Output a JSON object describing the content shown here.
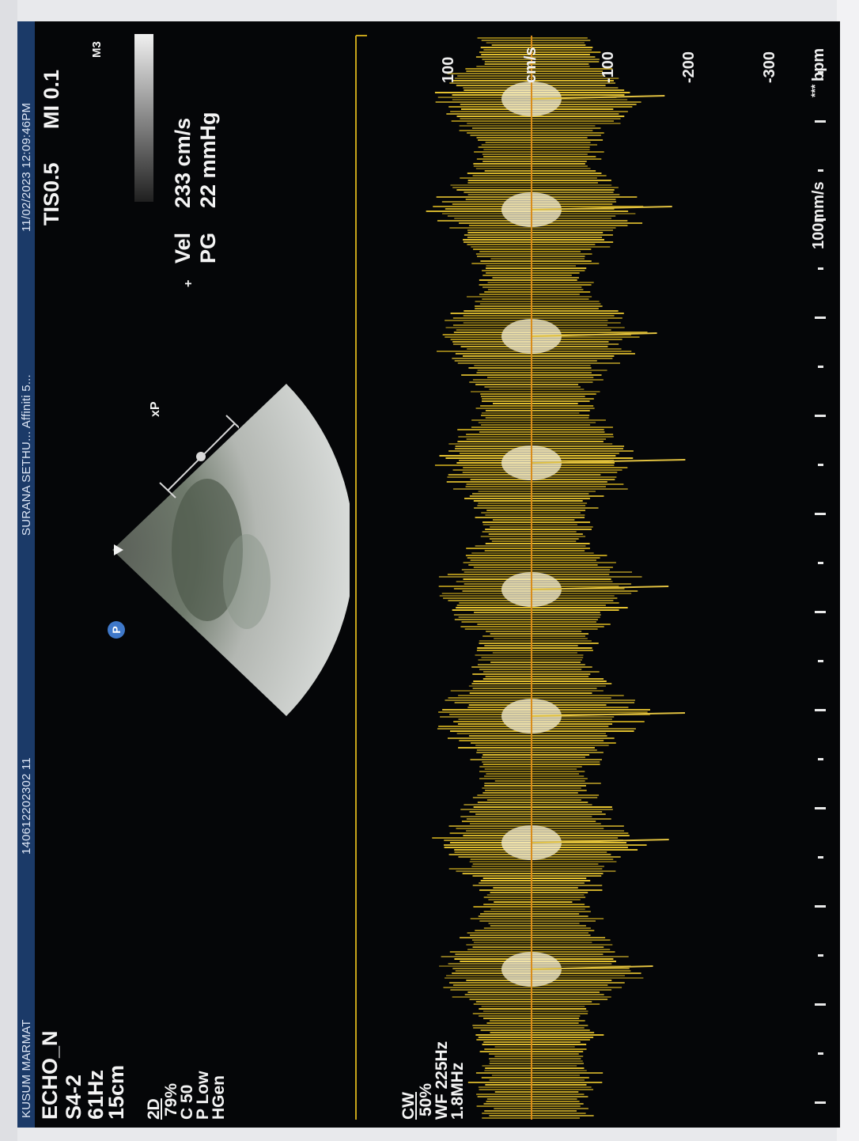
{
  "header": {
    "patient_name": "KUSUM MARMAT",
    "patient_id": "140612202302 11",
    "facility": "SURANA SETHU... Affiniti 5...",
    "datetime": "11/02/2023  12:09:46PM"
  },
  "left_panel": {
    "preset": "ECHO_N",
    "probe": "S4-2",
    "frame_rate": "61Hz",
    "depth": "15cm",
    "mode_2d": "2D",
    "gain_2d": "79%",
    "compression": "C 50",
    "persistence": "P Low",
    "frequency_mode": "HGen"
  },
  "cw_panel": {
    "mode": "CW",
    "gain": "50%",
    "wall_filter": "WF 225Hz",
    "frequency": "1.8MHz"
  },
  "right_info": {
    "tis": "TIS0.5",
    "mi": "MI 0.1",
    "map_label": "M3"
  },
  "measurement": {
    "vel_label": "Vel",
    "vel_value": "233 cm/s",
    "pg_label": "PG",
    "pg_value": "22 mmHg"
  },
  "sector_label": "xP",
  "probe_marker": "P",
  "doppler_scale": {
    "unit": "cm/s",
    "labels": [
      "100",
      "-100",
      "-200",
      "-300"
    ]
  },
  "sweep": {
    "speed": "100mm/s",
    "hr_unit": "bpm",
    "hr_value": "***"
  },
  "colors": {
    "header_bg": "#1b3a68",
    "doppler_yellow": "#e8c530",
    "baseline": "#d98c1a"
  }
}
